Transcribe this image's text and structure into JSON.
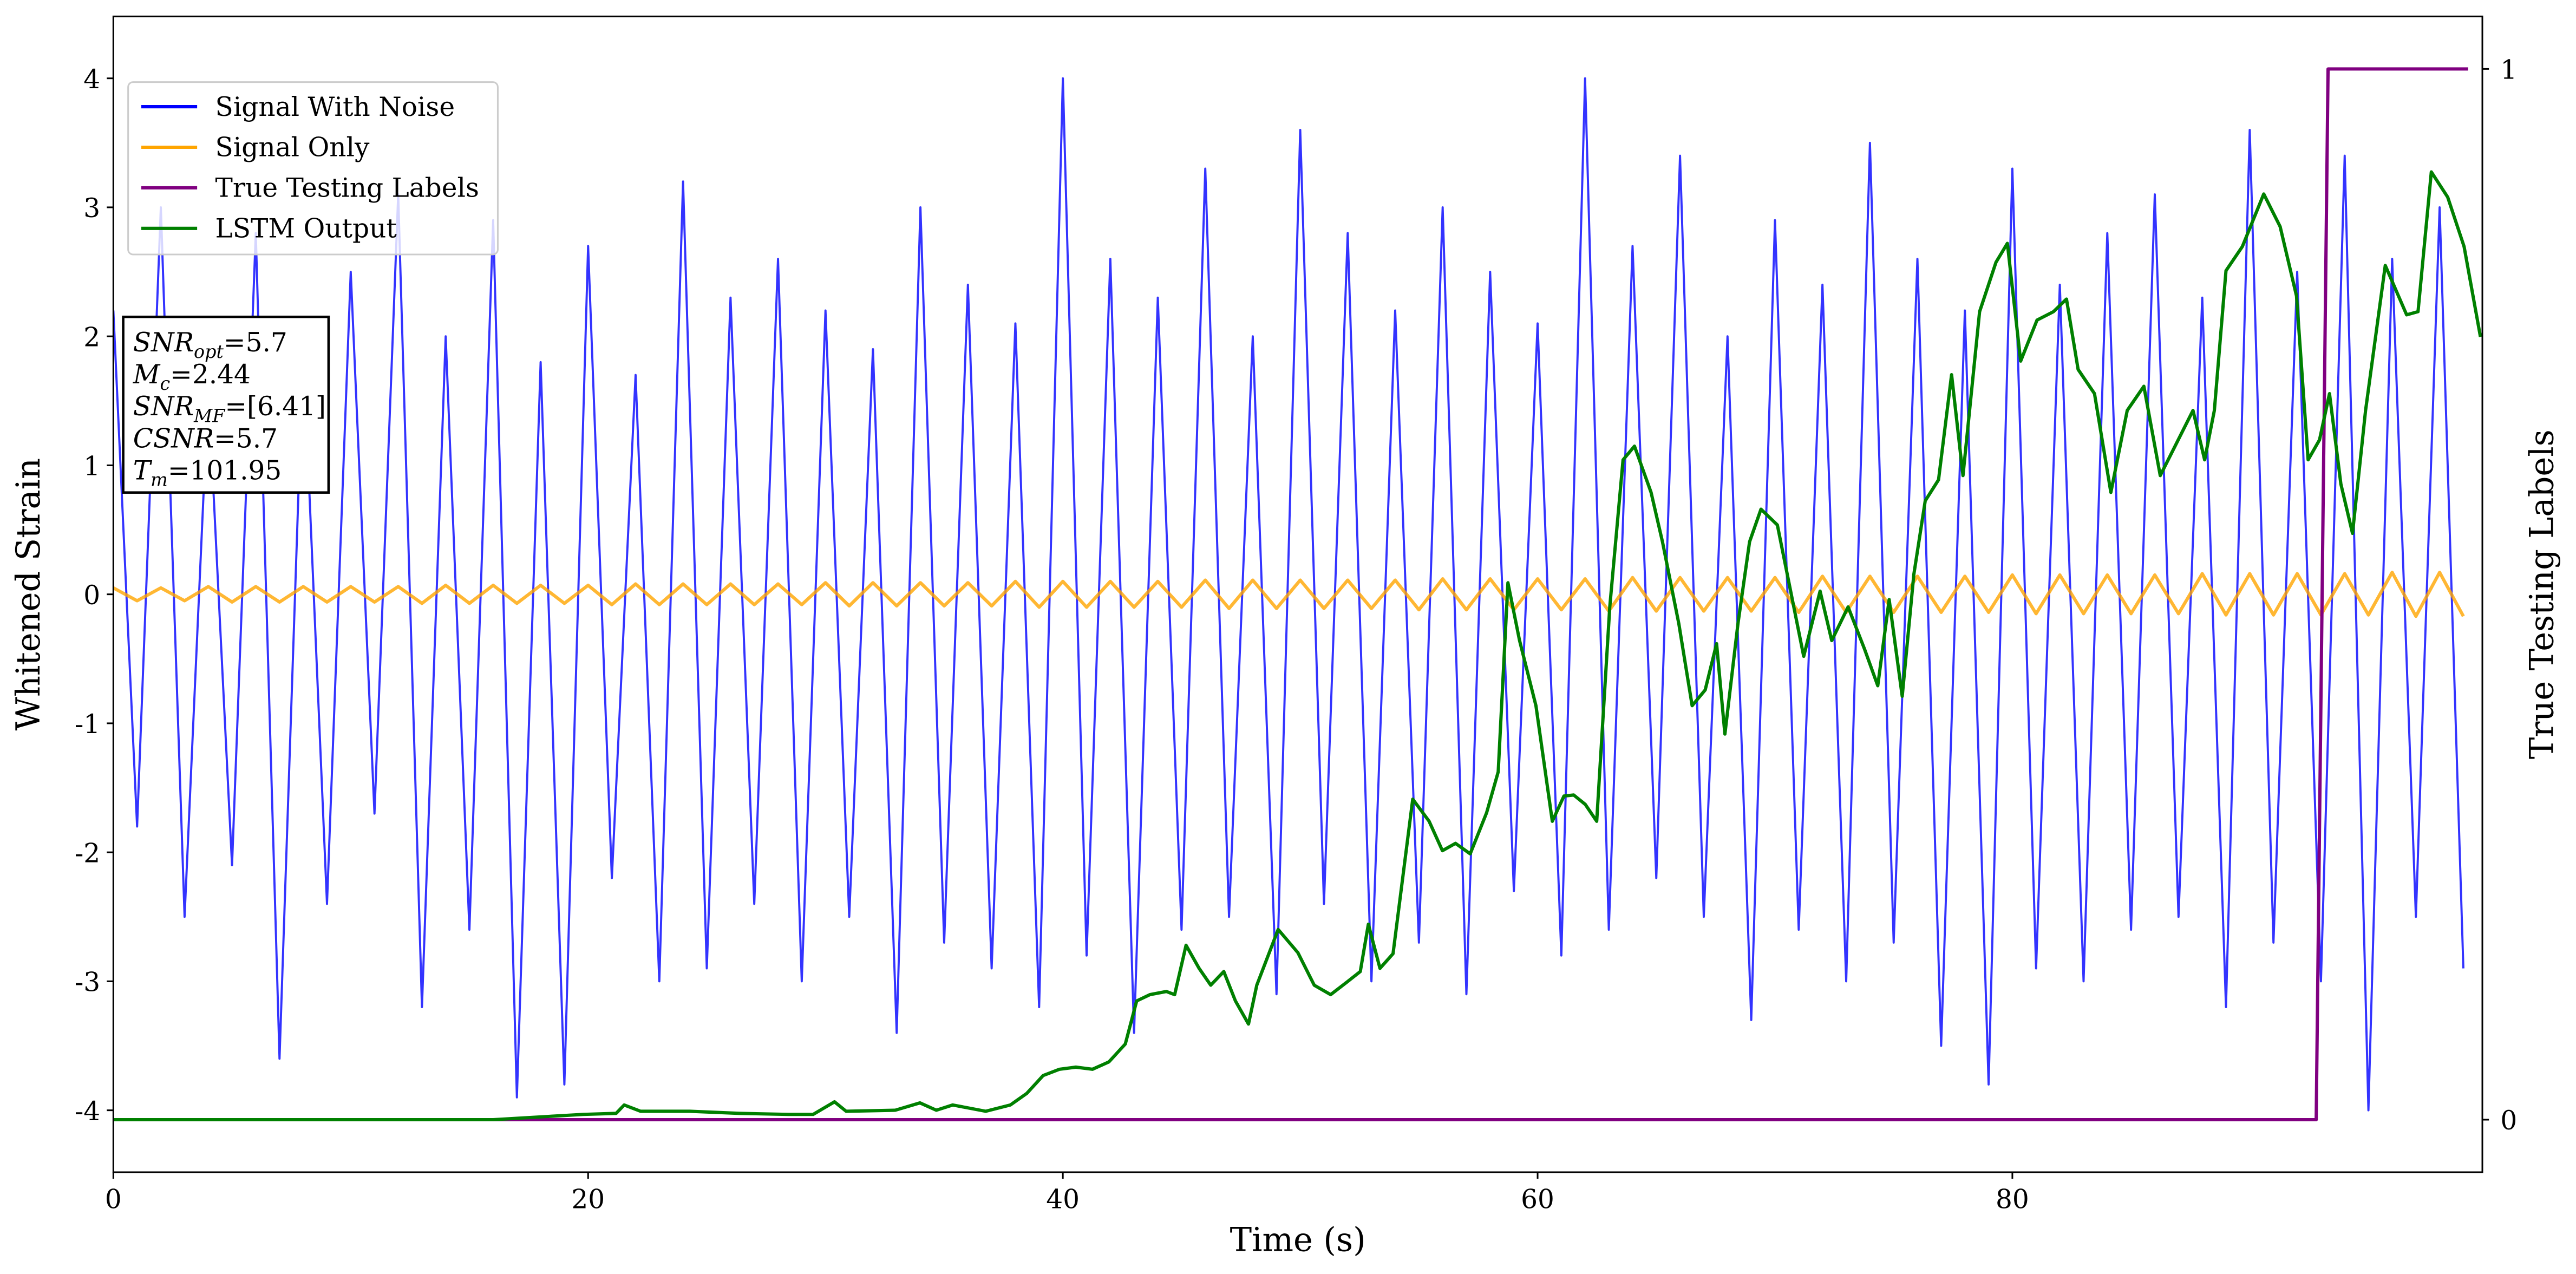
{
  "chart_data": {
    "type": "line",
    "xlabel": "Time (s)",
    "ylabel": "Whitened Strain",
    "y2label": "True Testing Labels",
    "xlim": [
      0,
      99.8
    ],
    "xticks": [
      0,
      20,
      40,
      60,
      80
    ],
    "ylim": [
      -4.48,
      4.48
    ],
    "yticks": [
      -4,
      -3,
      -2,
      -1,
      0,
      1,
      2,
      3,
      4
    ],
    "y2lim": [
      -0.05,
      1.05
    ],
    "y2ticks": [
      0,
      1
    ],
    "legend": "upper left",
    "annotation": [
      {
        "main": "SNR",
        "sub": "opt",
        "rest": "=5.7"
      },
      {
        "main": "M",
        "sub": "c",
        "rest": "=2.44"
      },
      {
        "main": "SNR",
        "sub": "MF",
        "rest": "=[6.41]"
      },
      {
        "main": "CSNR",
        "rest": "=5.7"
      },
      {
        "main": "T",
        "sub": "m",
        "rest": "=101.95"
      }
    ],
    "series": [
      {
        "name": "Signal With Noise",
        "color": "#0000ff",
        "x": [
          0,
          1,
          2,
          3,
          4,
          5,
          6,
          7,
          8,
          9,
          10,
          11,
          12,
          13,
          14,
          15,
          16,
          17,
          18,
          19,
          20,
          21,
          22,
          23,
          24,
          25,
          26,
          27,
          28,
          29,
          30,
          31,
          32,
          33,
          34,
          35,
          36,
          37,
          38,
          39,
          40,
          41,
          42,
          43,
          44,
          45,
          46,
          47,
          48,
          49,
          50,
          51,
          52,
          53,
          54,
          55,
          56,
          57,
          58,
          59,
          60,
          61,
          62,
          63,
          64,
          65,
          66,
          67,
          68,
          69,
          70,
          71,
          72,
          73,
          74,
          75,
          76,
          77,
          78,
          79,
          80,
          81,
          82,
          83,
          84,
          85,
          86,
          87,
          88,
          89,
          90,
          91,
          92,
          93,
          94,
          95,
          96,
          97,
          98,
          99
        ],
        "values": [
          2.2,
          -1.8,
          3.0,
          -2.5,
          1.6,
          -2.1,
          2.8,
          -3.6,
          1.9,
          -2.4,
          2.5,
          -1.7,
          3.1,
          -3.2,
          2.0,
          -2.6,
          2.9,
          -3.9,
          1.8,
          -3.8,
          2.7,
          -2.2,
          1.7,
          -3.0,
          3.2,
          -2.9,
          2.3,
          -2.4,
          2.6,
          -3.0,
          2.2,
          -2.5,
          1.9,
          -3.4,
          3.0,
          -2.7,
          2.4,
          -2.9,
          2.1,
          -3.2,
          4.0,
          -2.8,
          2.6,
          -3.4,
          2.3,
          -2.6,
          3.3,
          -2.5,
          2.0,
          -3.1,
          3.6,
          -2.4,
          2.8,
          -3.0,
          2.2,
          -2.7,
          3.0,
          -3.1,
          2.5,
          -2.3,
          2.1,
          -2.8,
          4.0,
          -2.6,
          2.7,
          -2.2,
          3.4,
          -2.5,
          2.0,
          -3.3,
          2.9,
          -2.6,
          2.4,
          -3.0,
          3.5,
          -2.7,
          2.6,
          -3.5,
          2.2,
          -3.8,
          3.3,
          -2.9,
          2.4,
          -3.0,
          2.8,
          -2.6,
          3.1,
          -2.5,
          2.3,
          -3.2,
          3.6,
          -2.7,
          2.5,
          -3.0,
          3.4,
          -4.0,
          2.6,
          -2.5,
          3.0,
          -2.9
        ]
      },
      {
        "name": "Signal Only",
        "color": "#ffa500",
        "x": [
          0,
          1,
          2,
          3,
          4,
          5,
          6,
          7,
          8,
          9,
          10,
          11,
          12,
          13,
          14,
          15,
          16,
          17,
          18,
          19,
          20,
          21,
          22,
          23,
          24,
          25,
          26,
          27,
          28,
          29,
          30,
          31,
          32,
          33,
          34,
          35,
          36,
          37,
          38,
          39,
          40,
          41,
          42,
          43,
          44,
          45,
          46,
          47,
          48,
          49,
          50,
          51,
          52,
          53,
          54,
          55,
          56,
          57,
          58,
          59,
          60,
          61,
          62,
          63,
          64,
          65,
          66,
          67,
          68,
          69,
          70,
          71,
          72,
          73,
          74,
          75,
          76,
          77,
          78,
          79,
          80,
          81,
          82,
          83,
          84,
          85,
          86,
          87,
          88,
          89,
          90,
          91,
          92,
          93,
          94,
          95,
          96,
          97,
          98,
          99
        ],
        "values": [
          0.05,
          -0.05,
          0.05,
          -0.05,
          0.06,
          -0.06,
          0.06,
          -0.06,
          0.06,
          -0.06,
          0.06,
          -0.06,
          0.06,
          -0.07,
          0.07,
          -0.07,
          0.07,
          -0.07,
          0.07,
          -0.07,
          0.07,
          -0.08,
          0.08,
          -0.08,
          0.08,
          -0.08,
          0.08,
          -0.08,
          0.08,
          -0.08,
          0.09,
          -0.09,
          0.09,
          -0.09,
          0.09,
          -0.09,
          0.09,
          -0.09,
          0.1,
          -0.1,
          0.1,
          -0.1,
          0.1,
          -0.1,
          0.1,
          -0.1,
          0.11,
          -0.11,
          0.11,
          -0.11,
          0.11,
          -0.11,
          0.11,
          -0.11,
          0.11,
          -0.12,
          0.12,
          -0.12,
          0.12,
          -0.12,
          0.12,
          -0.12,
          0.12,
          -0.13,
          0.13,
          -0.13,
          0.13,
          -0.13,
          0.13,
          -0.13,
          0.13,
          -0.14,
          0.14,
          -0.14,
          0.14,
          -0.14,
          0.14,
          -0.14,
          0.14,
          -0.14,
          0.15,
          -0.15,
          0.15,
          -0.15,
          0.15,
          -0.15,
          0.15,
          -0.15,
          0.16,
          -0.16,
          0.16,
          -0.16,
          0.16,
          -0.16,
          0.16,
          -0.16,
          0.17,
          -0.17,
          0.17,
          -0.17
        ]
      },
      {
        "name": "True Testing Labels",
        "color": "#800080",
        "axis": "y2",
        "x": [
          0,
          92.8,
          93.3,
          99.2
        ],
        "values": [
          0,
          0,
          1,
          1
        ]
      },
      {
        "name": "LSTM Output",
        "color": "#008000",
        "axis": "y2",
        "x": [
          0,
          16,
          19.79,
          21.18,
          21.52,
          22.21,
          24.29,
          26.37,
          28.44,
          29.48,
          30.38,
          30.87,
          32.94,
          33.98,
          34.67,
          35.36,
          36.75,
          37.79,
          38.48,
          39.17,
          39.86,
          40.55,
          41.25,
          41.94,
          42.63,
          43.11,
          43.67,
          44.36,
          44.71,
          45.19,
          45.74,
          46.23,
          46.78,
          47.27,
          47.82,
          48.17,
          49.07,
          49.9,
          50.59,
          51.28,
          51.97,
          52.53,
          52.87,
          53.36,
          53.91,
          54.74,
          55.43,
          55.99,
          56.54,
          57.16,
          57.85,
          58.34,
          58.75,
          59.24,
          59.93,
          60.62,
          61.11,
          61.52,
          62.01,
          62.49,
          63.04,
          63.6,
          64.08,
          64.78,
          65.26,
          65.95,
          66.51,
          67.06,
          67.54,
          67.89,
          68.44,
          68.93,
          69.41,
          70.1,
          70.66,
          71.21,
          71.9,
          72.39,
          73.08,
          73.77,
          74.33,
          74.81,
          75.36,
          75.85,
          76.33,
          76.89,
          77.44,
          77.92,
          78.62,
          79.31,
          79.79,
          80.35,
          81.04,
          81.73,
          82.28,
          82.77,
          83.46,
          84.15,
          84.84,
          85.54,
          86.23,
          86.92,
          87.61,
          88.1,
          88.51,
          89,
          89.69,
          90.59,
          91.28,
          91.97,
          92.46,
          92.94,
          93.36,
          93.84,
          94.33,
          94.88,
          95.71,
          96.61,
          97.09,
          97.65,
          98.34,
          99.03,
          99.72
        ],
        "values": [
          0,
          0,
          0.005,
          0.006,
          0.014,
          0.008,
          0.008,
          0.006,
          0.005,
          0.005,
          0.017,
          0.008,
          0.009,
          0.016,
          0.009,
          0.014,
          0.008,
          0.014,
          0.025,
          0.042,
          0.048,
          0.05,
          0.048,
          0.055,
          0.072,
          0.113,
          0.119,
          0.122,
          0.119,
          0.166,
          0.144,
          0.128,
          0.141,
          0.113,
          0.091,
          0.128,
          0.181,
          0.159,
          0.128,
          0.119,
          0.131,
          0.141,
          0.186,
          0.144,
          0.158,
          0.305,
          0.284,
          0.256,
          0.263,
          0.253,
          0.292,
          0.331,
          0.511,
          0.456,
          0.394,
          0.284,
          0.308,
          0.309,
          0.3,
          0.284,
          0.488,
          0.628,
          0.641,
          0.597,
          0.55,
          0.472,
          0.394,
          0.409,
          0.453,
          0.367,
          0.472,
          0.55,
          0.581,
          0.566,
          0.503,
          0.441,
          0.503,
          0.456,
          0.488,
          0.448,
          0.413,
          0.495,
          0.403,
          0.519,
          0.589,
          0.609,
          0.709,
          0.613,
          0.769,
          0.816,
          0.834,
          0.722,
          0.761,
          0.769,
          0.781,
          0.714,
          0.691,
          0.597,
          0.675,
          0.698,
          0.613,
          0.644,
          0.675,
          0.628,
          0.675,
          0.808,
          0.831,
          0.881,
          0.85,
          0.784,
          0.628,
          0.647,
          0.691,
          0.605,
          0.558,
          0.675,
          0.813,
          0.766,
          0.769,
          0.902,
          0.878,
          0.831,
          0.745
        ]
      }
    ]
  }
}
